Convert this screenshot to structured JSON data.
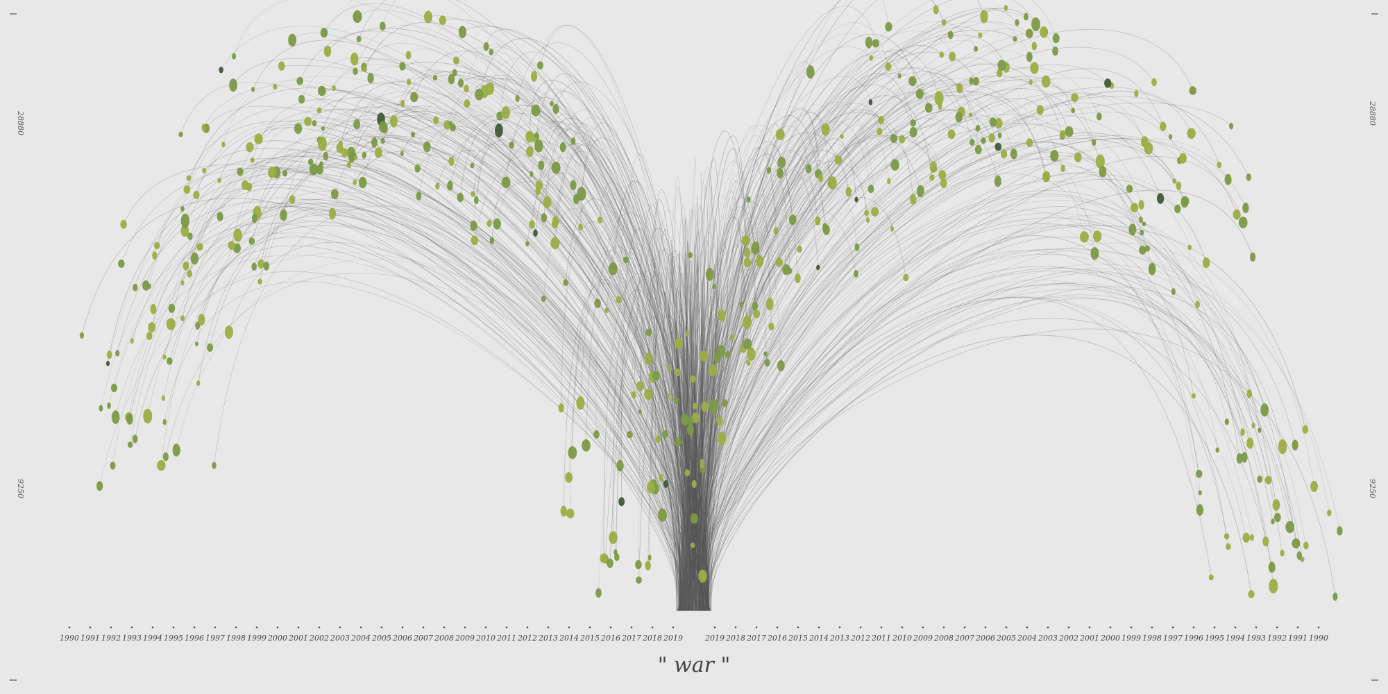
{
  "chart_data": {
    "type": "scatter",
    "title": "\" war \"",
    "y_scale_labels": {
      "upper": "28880",
      "lower": "9250"
    },
    "x_ticks_left": [
      "1990",
      "1991",
      "1992",
      "1993",
      "1994",
      "1995",
      "1996",
      "1997",
      "1998",
      "1999",
      "2000",
      "2001",
      "2002",
      "2003",
      "2004",
      "2005",
      "2006",
      "2007",
      "2008",
      "2009",
      "2010",
      "2011",
      "2012",
      "2013",
      "2014",
      "2015",
      "2016",
      "2017",
      "2018",
      "2019"
    ],
    "x_ticks_right": [
      "2019",
      "2018",
      "2017",
      "2016",
      "2015",
      "2014",
      "2013",
      "2012",
      "2011",
      "2010",
      "2009",
      "2008",
      "2007",
      "2006",
      "2005",
      "2004",
      "2003",
      "2002",
      "2001",
      "2000",
      "1999",
      "1998",
      "1997",
      "1996",
      "1995",
      "1994",
      "1993",
      "1992",
      "1991",
      "1990"
    ],
    "colors": {
      "background": "#e8e8e8",
      "arc": "#555555",
      "node_light": "#9aae45",
      "node_mid": "#7a9a45",
      "node_dark": "#3f5a35"
    },
    "approx_node_count": 520,
    "approx_arc_count": 520
  }
}
